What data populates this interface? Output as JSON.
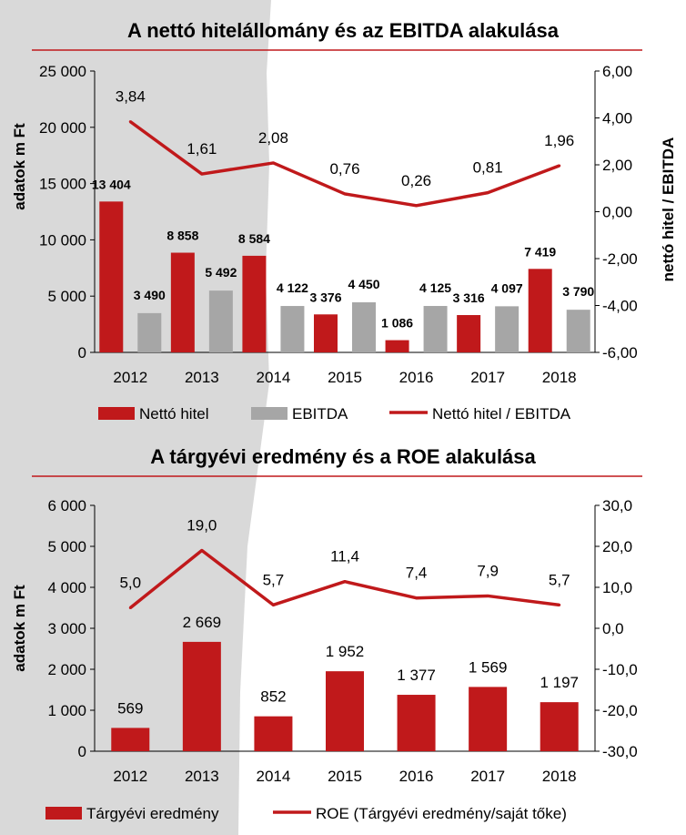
{
  "colors": {
    "red": "#c0191b",
    "gray": "#a6a6a6",
    "shade": "#d9d9d9",
    "divider": "#c0191b"
  },
  "chart_data": [
    {
      "type": "bar",
      "title": "A nettó hitelállomány és az EBITDA alakulása",
      "categories": [
        "2012",
        "2013",
        "2014",
        "2015",
        "2016",
        "2017",
        "2018"
      ],
      "ylabel": "adatok m Ft",
      "y2label": "nettó hitel / EBITDA",
      "ylim": [
        0,
        25000
      ],
      "y2lim": [
        -6,
        6
      ],
      "y_ticks": [
        {
          "v": 0,
          "t": "0"
        },
        {
          "v": 5000,
          "t": "5 000"
        },
        {
          "v": 10000,
          "t": "10 000"
        },
        {
          "v": 15000,
          "t": "15 000"
        },
        {
          "v": 20000,
          "t": "20 000"
        },
        {
          "v": 25000,
          "t": "25 000"
        }
      ],
      "y2_ticks": [
        {
          "v": -6,
          "t": "-6,00"
        },
        {
          "v": -4,
          "t": "-4,00"
        },
        {
          "v": -2,
          "t": "-2,00"
        },
        {
          "v": 0,
          "t": "0,00"
        },
        {
          "v": 2,
          "t": "2,00"
        },
        {
          "v": 4,
          "t": "4,00"
        },
        {
          "v": 6,
          "t": "6,00"
        }
      ],
      "series": [
        {
          "name": "Nettó hitel",
          "kind": "bar",
          "color": "#c0191b",
          "values": [
            13404,
            8858,
            8584,
            3376,
            1086,
            3316,
            7419
          ],
          "labels": [
            "13 404",
            "8 858",
            "8 584",
            "3 376",
            "1 086",
            "3 316",
            "7 419"
          ]
        },
        {
          "name": "EBITDA",
          "kind": "bar",
          "color": "#a6a6a6",
          "values": [
            3490,
            5492,
            4122,
            4450,
            4125,
            4097,
            3790
          ],
          "labels": [
            "3 490",
            "5 492",
            "4 122",
            "4 450",
            "4 125",
            "4 097",
            "3 790"
          ]
        },
        {
          "name": "Nettó hitel / EBITDA",
          "kind": "line",
          "axis": "right",
          "color": "#c0191b",
          "values": [
            3.84,
            1.61,
            2.08,
            0.76,
            0.26,
            0.81,
            1.96
          ],
          "labels": [
            "3,84",
            "1,61",
            "2,08",
            "0,76",
            "0,26",
            "0,81",
            "1,96"
          ]
        }
      ],
      "legend": "bottom"
    },
    {
      "type": "bar",
      "title": "A tárgyévi eredmény és a ROE alakulása",
      "categories": [
        "2012",
        "2013",
        "2014",
        "2015",
        "2016",
        "2017",
        "2018"
      ],
      "ylabel": "adatok m Ft",
      "ylim": [
        0,
        6000
      ],
      "y2lim": [
        -30,
        30
      ],
      "y_ticks": [
        {
          "v": 0,
          "t": "0"
        },
        {
          "v": 1000,
          "t": "1 000"
        },
        {
          "v": 2000,
          "t": "2 000"
        },
        {
          "v": 3000,
          "t": "3 000"
        },
        {
          "v": 4000,
          "t": "4 000"
        },
        {
          "v": 5000,
          "t": "5 000"
        },
        {
          "v": 6000,
          "t": "6 000"
        }
      ],
      "y2_ticks": [
        {
          "v": -30,
          "t": "-30,0"
        },
        {
          "v": -20,
          "t": "-20,0"
        },
        {
          "v": -10,
          "t": "-10,0"
        },
        {
          "v": 0,
          "t": "0,0"
        },
        {
          "v": 10,
          "t": "10,0"
        },
        {
          "v": 20,
          "t": "20,0"
        },
        {
          "v": 30,
          "t": "30,0"
        }
      ],
      "series": [
        {
          "name": "Tárgyévi eredmény",
          "kind": "bar",
          "color": "#c0191b",
          "values": [
            569,
            2669,
            852,
            1952,
            1377,
            1569,
            1197
          ],
          "labels": [
            "569",
            "2 669",
            "852",
            "1 952",
            "1 377",
            "1 569",
            "1 197"
          ]
        },
        {
          "name": "ROE (Tárgyévi eredmény/saját tőke)",
          "kind": "line",
          "axis": "right",
          "color": "#c0191b",
          "values": [
            5.0,
            19.0,
            5.7,
            11.4,
            7.4,
            7.9,
            5.7
          ],
          "labels": [
            "5,0",
            "19,0",
            "5,7",
            "11,4",
            "7,4",
            "7,9",
            "5,7"
          ]
        }
      ],
      "legend": "bottom"
    }
  ]
}
